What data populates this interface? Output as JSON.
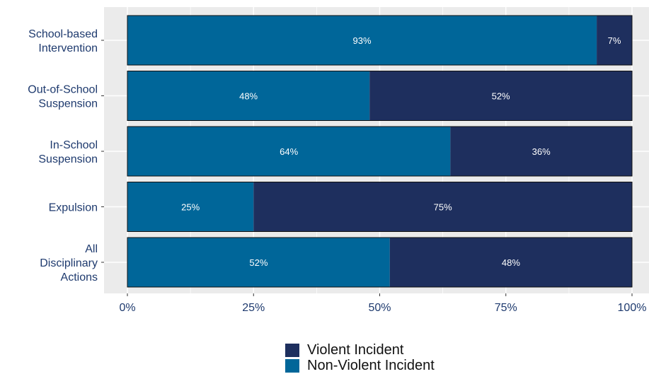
{
  "chart_data": {
    "type": "bar",
    "orientation": "horizontal",
    "stacked": true,
    "categories": [
      [
        "School-based",
        "Intervention"
      ],
      [
        "Out-of-School",
        "Suspension"
      ],
      [
        "In-School",
        "Suspension"
      ],
      [
        "Expulsion"
      ],
      [
        "All",
        "Disciplinary",
        "Actions"
      ]
    ],
    "series": [
      {
        "name": "Non-Violent Incident",
        "color": "#006699",
        "values": [
          93,
          48,
          64,
          25,
          52
        ],
        "labels": [
          "93%",
          "48%",
          "64%",
          "25%",
          "52%"
        ]
      },
      {
        "name": "Violent Incident",
        "color": "#1e2f5e",
        "values": [
          7,
          52,
          36,
          75,
          48
        ],
        "labels": [
          "7%",
          "52%",
          "36%",
          "75%",
          "48%"
        ]
      }
    ],
    "xlim": [
      0,
      100
    ],
    "xticks": [
      "0%",
      "25%",
      "50%",
      "75%",
      "100%"
    ],
    "grid": true,
    "legend": [
      "Violent Incident",
      "Non-Violent Incident"
    ],
    "legend_position": "bottom"
  }
}
